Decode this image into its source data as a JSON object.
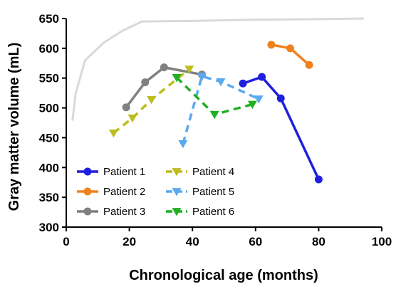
{
  "chart_data": {
    "type": "line",
    "title": "",
    "xlabel": "Chronological age (months)",
    "ylabel": "Gray matter volume (mL)",
    "xlim": [
      0,
      100
    ],
    "ylim": [
      300,
      650
    ],
    "xticks": [
      0,
      20,
      40,
      60,
      80,
      100
    ],
    "yticks": [
      300,
      350,
      400,
      450,
      500,
      550,
      600,
      650
    ],
    "grid": false,
    "legend_position": "bottom-left",
    "reference_curve": {
      "color": "#d9d9d9",
      "points": [
        [
          2,
          480
        ],
        [
          3,
          525
        ],
        [
          6,
          580
        ],
        [
          12,
          610
        ],
        [
          18,
          630
        ],
        [
          24,
          645
        ],
        [
          40,
          646
        ],
        [
          60,
          648
        ],
        [
          80,
          649
        ],
        [
          94,
          650
        ]
      ]
    },
    "series": [
      {
        "name": "Patient 1",
        "color": "#1f1fe0",
        "style": "solid",
        "marker": "circle",
        "x": [
          56,
          62,
          68,
          80
        ],
        "y": [
          541,
          552,
          516,
          380
        ]
      },
      {
        "name": "Patient 2",
        "color": "#f0821e",
        "style": "solid",
        "marker": "circle",
        "x": [
          65,
          71,
          77
        ],
        "y": [
          606,
          600,
          572
        ]
      },
      {
        "name": "Patient 3",
        "color": "#808080",
        "style": "solid",
        "marker": "circle",
        "x": [
          19,
          25,
          31,
          43
        ],
        "y": [
          501,
          543,
          568,
          556
        ]
      },
      {
        "name": "Patient 4",
        "color": "#bdbd1e",
        "style": "dashed",
        "marker": "triangle-down",
        "x": [
          15,
          21,
          27,
          39
        ],
        "y": [
          458,
          483,
          514,
          565
        ]
      },
      {
        "name": "Patient 5",
        "color": "#5aa9f0",
        "style": "dashed",
        "marker": "triangle-down",
        "x": [
          37,
          43,
          49,
          61
        ],
        "y": [
          440,
          553,
          544,
          515
        ]
      },
      {
        "name": "Patient 6",
        "color": "#22b022",
        "style": "dashed",
        "marker": "triangle-down",
        "x": [
          35,
          47,
          59
        ],
        "y": [
          551,
          489,
          506
        ]
      }
    ]
  }
}
